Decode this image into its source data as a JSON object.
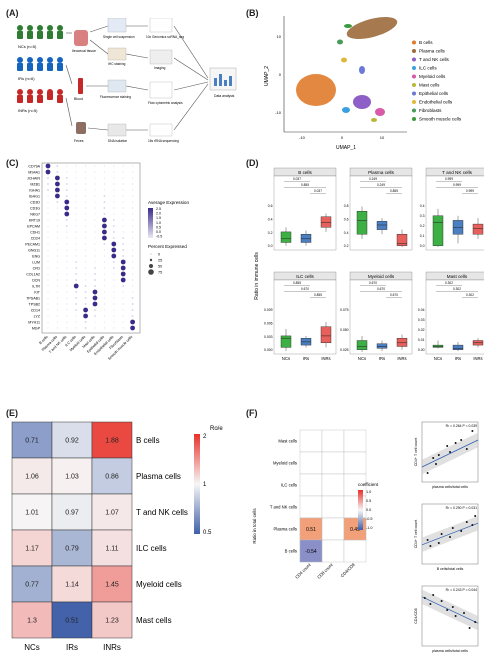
{
  "panel_labels": {
    "a": "(A)",
    "b": "(B)",
    "c": "(C)",
    "d": "(D)",
    "e": "(E)",
    "f": "(F)"
  },
  "panel_a": {
    "groups": [
      {
        "label": "NCs (n=5)",
        "color": "#2e7d32"
      },
      {
        "label": "IRs (n=6)",
        "color": "#1565c0"
      },
      {
        "label": "INRs (n=5)",
        "color": "#c62828"
      }
    ],
    "samples": [
      "Ileocecal tissue",
      "Blood",
      "Feces"
    ],
    "steps": [
      "Single cell suspension",
      "10x Genomics scRNA_seq",
      "IHC staining",
      "Imaging",
      "Fluorescence staining",
      "Flow cytometric analysis",
      "DNA isolation",
      "16s rRNA sequencing",
      "Data analysis"
    ]
  },
  "panel_b": {
    "xlabel": "UMAP_1",
    "ylabel": "UMAP_2",
    "xticks": [
      "-10",
      "0",
      "10"
    ],
    "yticks": [
      "-10",
      "0",
      "10"
    ],
    "legend": [
      {
        "name": "B cells",
        "color": "#e07b2c"
      },
      {
        "name": "Plasma cells",
        "color": "#9c6b3b"
      },
      {
        "name": "T and NK cells",
        "color": "#8e5fc7"
      },
      {
        "name": "ILC cells",
        "color": "#3aa1e0"
      },
      {
        "name": "Myeloid cells",
        "color": "#d85aa8"
      },
      {
        "name": "Mast cells",
        "color": "#b8b83a"
      },
      {
        "name": "Epithelial cells",
        "color": "#6a78d6"
      },
      {
        "name": "Endothelial cells",
        "color": "#e0b93a"
      },
      {
        "name": "Fibroblasts",
        "color": "#4a9a5c"
      },
      {
        "name": "Smooth muscle cells",
        "color": "#3c9a3c"
      }
    ]
  },
  "panel_c": {
    "genes": [
      "CD79A",
      "MS4A1",
      "JCHAIN",
      "MZB1",
      "IGHA1",
      "IGHG1",
      "CD3D",
      "CD3G",
      "NKG7",
      "KRT19",
      "EPCAM",
      "CDH1",
      "CD24",
      "PECAM1",
      "GNG11",
      "ENG",
      "LUM",
      "CFD",
      "COL1A2",
      "DCN",
      "IL7R",
      "KIT",
      "TPSAB1",
      "TPSB2",
      "CD14",
      "LYZ",
      "MYH11",
      "MGP"
    ],
    "cells": [
      "B cells",
      "Plasma cells",
      "T and NK cells",
      "ILC cells",
      "Myeloid cells",
      "Mast cells",
      "Epithelial cells",
      "Endothelial cells",
      "Fibroblasts",
      "Smooth muscle cells"
    ],
    "legend_expr_title": "Average Expression",
    "legend_expr_ticks": [
      "2.5",
      "2.0",
      "1.5",
      "1.0",
      "0.5",
      "0.0",
      "-0.5"
    ],
    "legend_pct_title": "Percent Expressed",
    "legend_pct_ticks": [
      "0",
      "25",
      "50",
      "75"
    ]
  },
  "panel_d": {
    "ylabel": "Ratio in immune cells",
    "groups": [
      "NCs",
      "IRs",
      "INRs"
    ],
    "group_colors": [
      "#3cb043",
      "#4a7fc1",
      "#e8605c"
    ],
    "subplots": [
      {
        "title": "B cells",
        "yticks": [
          "0.6",
          "0.4",
          "0.2",
          "0.0"
        ],
        "pvals": [
          "0.037",
          "0.855",
          "0.037"
        ]
      },
      {
        "title": "Plasma cells",
        "yticks": [
          "0.8",
          "0.6",
          "0.4",
          "0.2"
        ],
        "pvals": [
          "0.249",
          "0.249",
          "0.855"
        ]
      },
      {
        "title": "T and NK cells",
        "yticks": [
          "0.4",
          "0.3",
          "0.2",
          "0.1",
          "0.0"
        ],
        "pvals": [
          "0.999",
          "0.999",
          "0.999"
        ]
      },
      {
        "title": "ILC cells",
        "yticks": [
          "0.009",
          "0.006",
          "0.003",
          "0.000"
        ],
        "pvals": [
          "0.855",
          "0.670",
          "0.855"
        ]
      },
      {
        "title": "Myeloid cells",
        "yticks": [
          "0.075",
          "0.050",
          "0.025"
        ],
        "pvals": [
          "0.670",
          "0.670",
          "0.670"
        ]
      },
      {
        "title": "Mast cells",
        "yticks": [
          "0.04",
          "0.03",
          "0.02",
          "0.01",
          "0.00"
        ],
        "pvals": [
          "0.302",
          "0.302",
          "0.302"
        ]
      }
    ]
  },
  "panel_e": {
    "rows": [
      "B cells",
      "Plasma cells",
      "T and NK cells",
      "ILC cells",
      "Myeloid cells",
      "Mast cells"
    ],
    "cols": [
      "NCs",
      "IRs",
      "INRs"
    ],
    "values": [
      [
        "0.71",
        "0.92",
        "1.88"
      ],
      [
        "1.06",
        "1.03",
        "0.86"
      ],
      [
        "1.01",
        "0.97",
        "1.07"
      ],
      [
        "1.17",
        "0.79",
        "1.11"
      ],
      [
        "0.77",
        "1.14",
        "1.45"
      ],
      [
        "1.3",
        "0.51",
        "1.23"
      ]
    ],
    "legend_title": "Ro/e",
    "legend_ticks": [
      "2",
      "1",
      "0.5"
    ]
  },
  "panel_f": {
    "rows": [
      "Mast cells",
      "Myeloid cells",
      "ILC cells",
      "T and NK cells",
      "Plasma cells",
      "B cells"
    ],
    "cols": [
      "CD4 count",
      "CD8 count",
      "CD4/CD8"
    ],
    "ylabel": "Ratio in total cells",
    "cells": [
      {
        "row": 4,
        "col": 0,
        "value": "0.51",
        "color": "#f2a07a"
      },
      {
        "row": 4,
        "col": 2,
        "value": "0.49",
        "color": "#f2a07a"
      },
      {
        "row": 5,
        "col": 0,
        "value": "-0.54",
        "color": "#8b8fc8"
      }
    ],
    "legend_title": "coefficient",
    "legend_ticks": [
      "1.0",
      "0.5",
      "0.0",
      "-0.5",
      "-1.0"
    ],
    "scatters": [
      {
        "stat": "R² = 0.264  P = 0.039",
        "xlabel": "plasma cells/total cells",
        "ylabel": "CD4+ T cell count"
      },
      {
        "stat": "R² = 0.290  P = 0.031",
        "xlabel": "B cells/total cells",
        "ylabel": "CD4+ T cell count"
      },
      {
        "stat": "R² = 0.243  P = 0.044",
        "xlabel": "plasma cells/total cells",
        "ylabel": "CD4/CD8"
      }
    ]
  }
}
